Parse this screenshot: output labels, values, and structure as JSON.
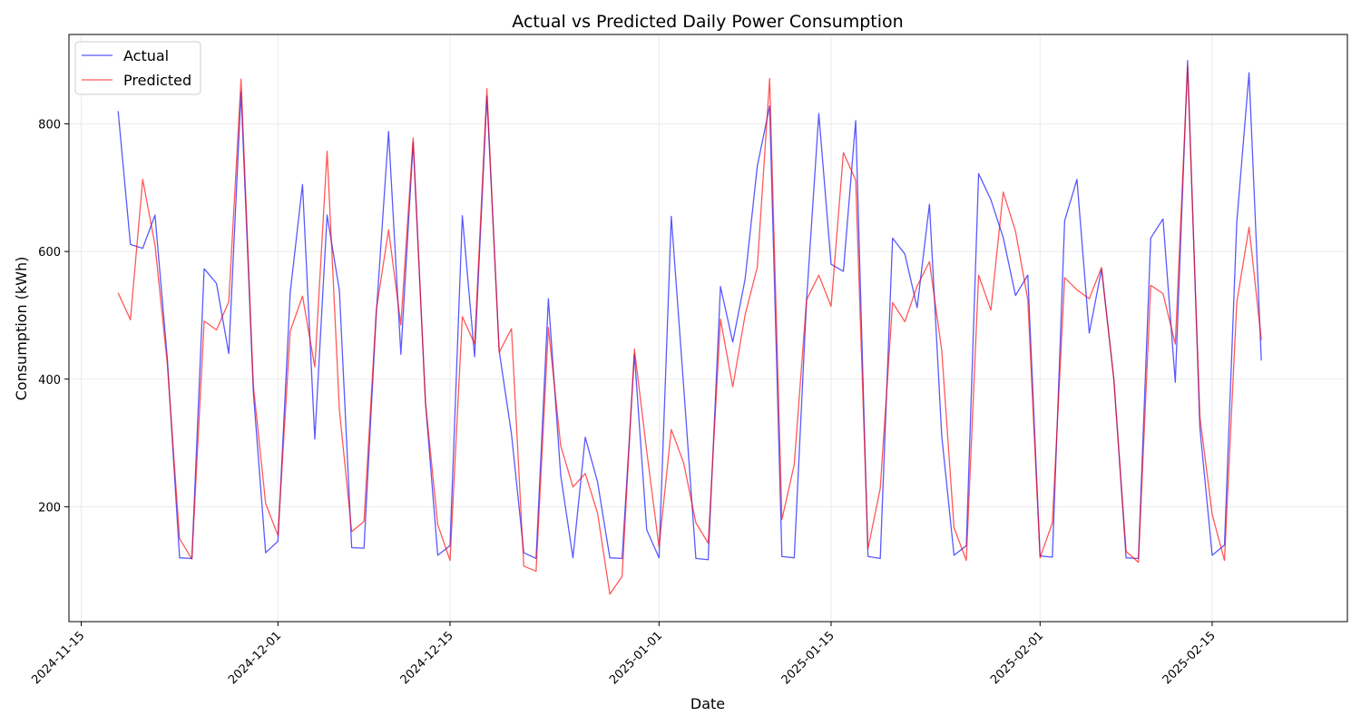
{
  "chart_data": {
    "type": "line",
    "title": "Actual vs Predicted Daily Power Consumption",
    "xlabel": "Date",
    "ylabel": "Consumption (kWh)",
    "x_start": "2024-11-18",
    "xlim": [
      "2024-11-14",
      "2025-02-26"
    ],
    "ylim": [
      20,
      940
    ],
    "x_ticks": [
      "2024-11-15",
      "2024-12-01",
      "2024-12-15",
      "2025-01-01",
      "2025-01-15",
      "2025-02-01",
      "2025-02-15"
    ],
    "y_ticks": [
      200,
      400,
      600,
      800
    ],
    "grid": true,
    "legend_position": "upper-left",
    "series": [
      {
        "name": "Actual",
        "color": "#0000ff",
        "values": [
          820,
          611,
          605,
          657,
          433,
          120,
          119,
          573,
          550,
          440,
          850,
          380,
          128,
          146,
          536,
          705,
          306,
          657,
          539,
          136,
          135,
          502,
          788,
          439,
          771,
          364,
          124,
          139,
          656,
          435,
          843,
          444,
          314,
          128,
          119,
          526,
          250,
          120,
          309,
          239,
          120,
          119,
          439,
          164,
          120,
          655,
          390,
          119,
          117,
          545,
          458,
          556,
          734,
          828,
          122,
          120,
          522,
          816,
          580,
          569,
          805,
          122,
          119,
          621,
          596,
          512,
          674,
          311,
          124,
          139,
          722,
          681,
          622,
          531,
          563,
          123,
          121,
          648,
          713,
          472,
          572,
          400,
          120,
          119,
          621,
          651,
          395,
          899,
          324,
          124,
          140,
          645,
          880,
          429
        ]
      },
      {
        "name": "Predicted",
        "color": "#ff0000",
        "values": [
          535,
          493,
          713,
          610,
          424,
          150,
          118,
          491,
          477,
          521,
          870,
          390,
          205,
          155,
          475,
          530,
          419,
          757,
          352,
          161,
          177,
          508,
          634,
          485,
          778,
          364,
          172,
          116,
          498,
          455,
          855,
          442,
          479,
          107,
          99,
          481,
          296,
          231,
          252,
          190,
          63,
          91,
          447,
          287,
          137,
          321,
          269,
          175,
          143,
          494,
          388,
          500,
          576,
          871,
          180,
          266,
          524,
          563,
          514,
          755,
          712,
          134,
          229,
          520,
          490,
          546,
          584,
          445,
          167,
          116,
          563,
          508,
          693,
          632,
          525,
          120,
          175,
          559,
          540,
          526,
          575,
          400,
          130,
          113,
          547,
          534,
          455,
          890,
          341,
          188,
          116,
          520,
          638,
          461
        ]
      }
    ]
  }
}
